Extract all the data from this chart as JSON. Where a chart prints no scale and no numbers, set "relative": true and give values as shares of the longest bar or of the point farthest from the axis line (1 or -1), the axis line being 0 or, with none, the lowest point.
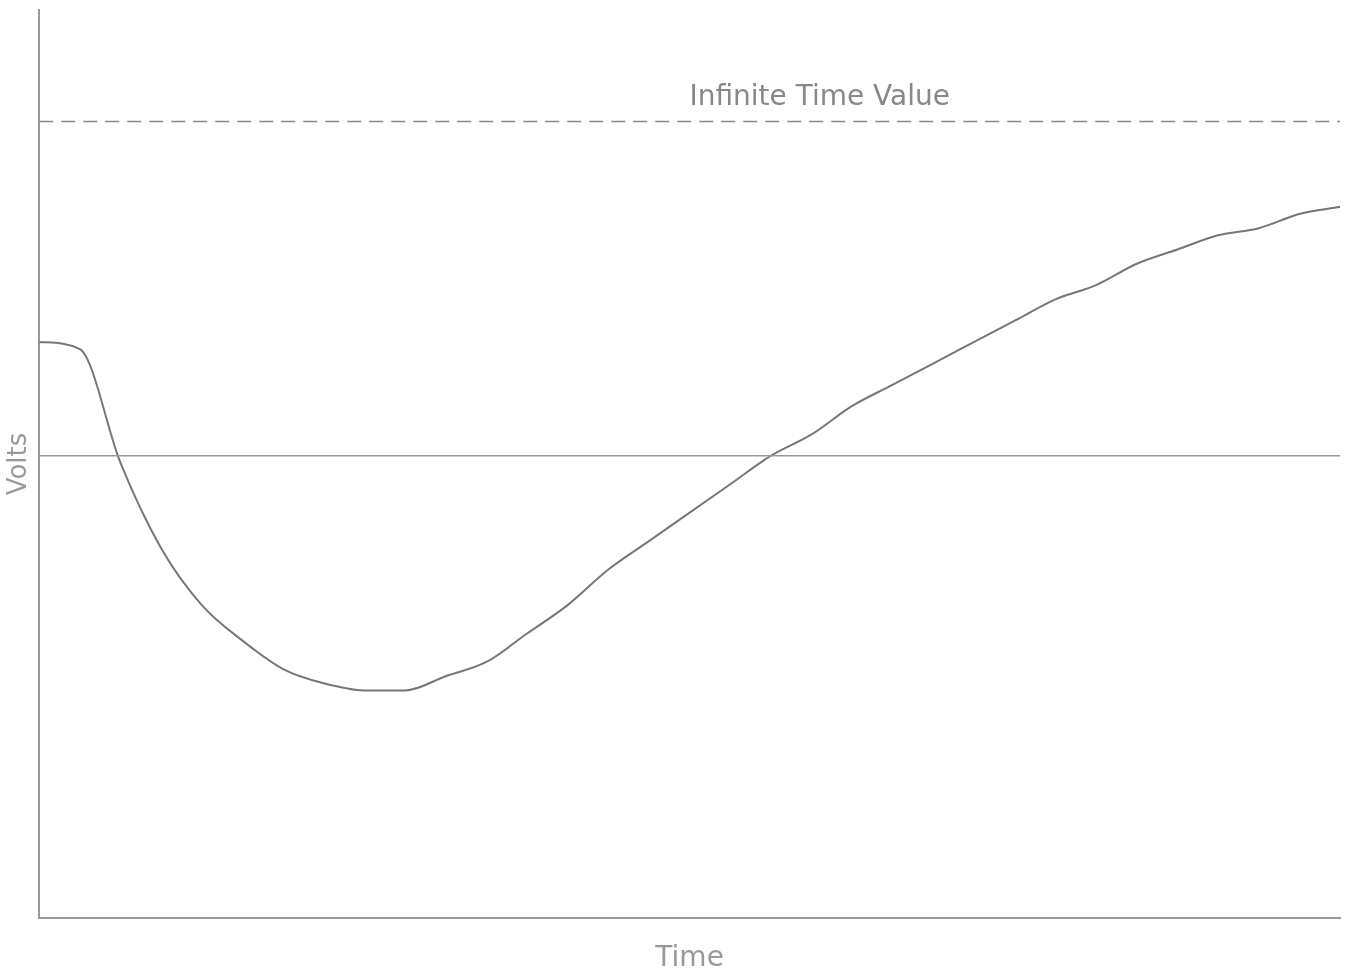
{
  "chart_data": {
    "type": "line",
    "relative": true,
    "xlabel": "Time",
    "ylabel": "Volts",
    "grid": false,
    "legend": false,
    "marker": "none",
    "line_style": "solid",
    "categories": [
      null,
      null,
      null,
      null,
      null,
      null,
      null,
      null,
      null,
      null,
      null,
      null,
      null,
      null,
      null,
      null,
      null,
      null,
      null,
      null,
      null,
      null,
      null,
      null,
      null,
      null,
      null,
      null,
      null,
      null,
      null,
      null,
      null
    ],
    "series": [
      {
        "color": "#777777",
        "values": [
          0.81,
          0.8,
          0.64,
          0.52,
          0.44,
          0.39,
          0.35,
          0.33,
          0.32,
          0.32,
          0.34,
          0.36,
          0.4,
          0.44,
          0.49,
          0.53,
          0.57,
          0.61,
          0.65,
          0.68,
          0.72,
          0.75,
          0.78,
          0.81,
          0.84,
          0.87,
          0.89,
          0.92,
          0.94,
          0.96,
          0.97,
          0.99,
          1
        ]
      }
    ],
    "ref_lines": [
      {
        "axis": "y",
        "value": 1.12,
        "label": "Infinite Time Value",
        "color": "#888888",
        "line_style": "dashed"
      },
      {
        "axis": "y",
        "value": 0.65,
        "color": "#999999",
        "line_style": "solid"
      }
    ]
  }
}
